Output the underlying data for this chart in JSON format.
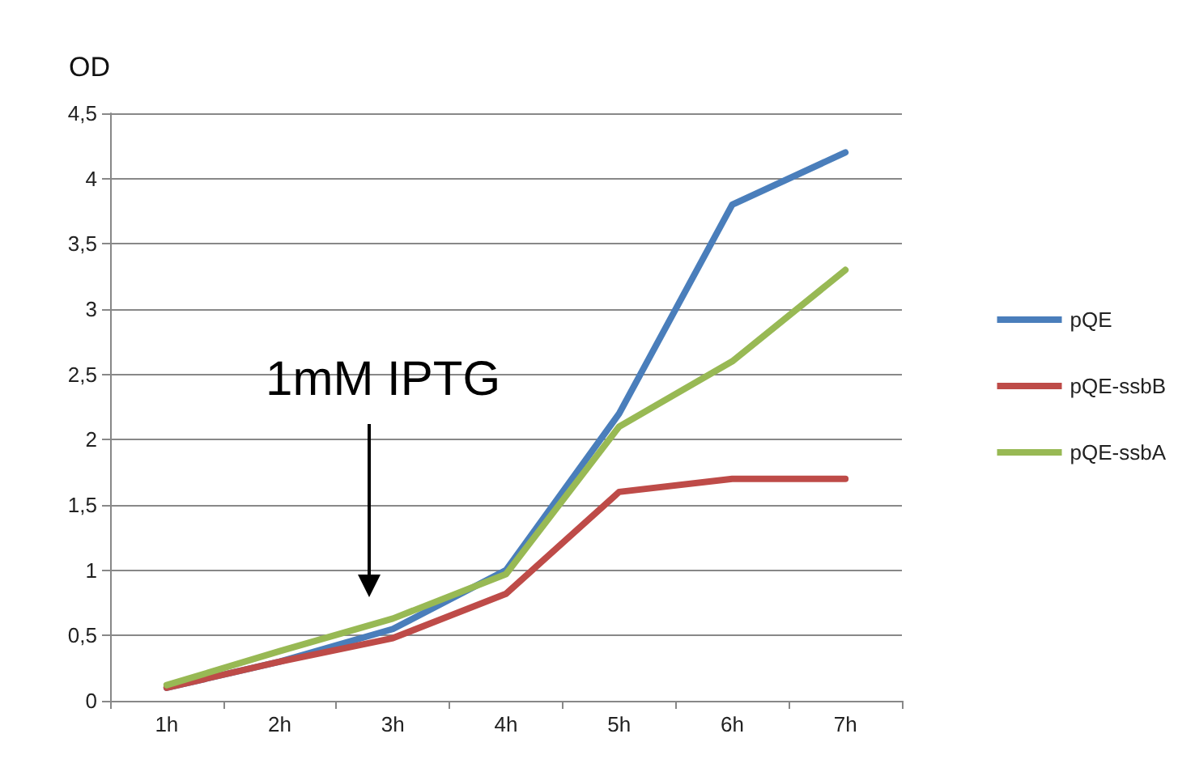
{
  "chart_data": {
    "type": "line",
    "ylabel": "OD",
    "categories": [
      "1h",
      "2h",
      "3h",
      "4h",
      "5h",
      "6h",
      "7h"
    ],
    "series": [
      {
        "name": "pQE",
        "color": "#4a7ebb",
        "values": [
          0.1,
          0.3,
          0.55,
          1.0,
          2.2,
          3.8,
          4.2
        ]
      },
      {
        "name": "pQE-ssbB",
        "color": "#be4b48",
        "values": [
          0.1,
          0.3,
          0.48,
          0.82,
          1.6,
          1.7,
          1.7
        ]
      },
      {
        "name": "pQE-ssbA",
        "color": "#98b954",
        "values": [
          0.12,
          0.38,
          0.63,
          0.97,
          2.1,
          2.6,
          3.3
        ]
      }
    ],
    "ylim": [
      0,
      4.5
    ],
    "yticks": [
      0,
      {
        "value": 0.5,
        "label": "0,5"
      },
      1,
      {
        "value": 1.5,
        "label": "1,5"
      },
      2,
      {
        "value": 2.5,
        "label": "2,5"
      },
      3,
      {
        "value": 3.5,
        "label": "3,5"
      },
      4,
      {
        "value": 4.5,
        "label": "4,5"
      }
    ],
    "grid": "y",
    "legend": "right",
    "marker": "none",
    "line_style": "solid",
    "annotations": [
      "1mM IPTG"
    ]
  }
}
